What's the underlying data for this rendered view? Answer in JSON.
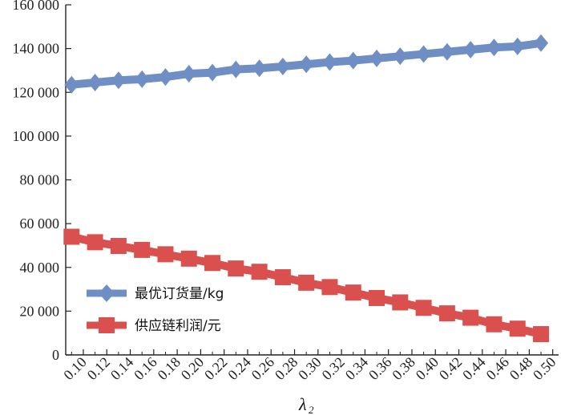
{
  "chart_data": {
    "type": "line",
    "x": [
      0.09,
      0.11,
      0.13,
      0.15,
      0.17,
      0.19,
      0.21,
      0.23,
      0.25,
      0.27,
      0.29,
      0.31,
      0.33,
      0.35,
      0.37,
      0.39,
      0.41,
      0.43,
      0.45,
      0.47,
      0.49
    ],
    "x_tick_labels": [
      "0.10",
      "0.12",
      "0.14",
      "0.16",
      "0.18",
      "0.20",
      "0.22",
      "0.24",
      "0.26",
      "0.28",
      "0.30",
      "0.32",
      "0.34",
      "0.36",
      "0.38",
      "0.40",
      "0.42",
      "0.44",
      "0.46",
      "0.48",
      "0.50"
    ],
    "y_tick_labels": [
      "0",
      "20 000",
      "40 000",
      "60 000",
      "80 000",
      "100 000",
      "120 000",
      "140 000",
      "160 000"
    ],
    "xlabel": "λ",
    "xlabel_sub": "2",
    "ylabel": "",
    "ylim": [
      0,
      160000
    ],
    "xlim": [
      0.085,
      0.505
    ],
    "grid": false,
    "legend_position": "center-left",
    "series": [
      {
        "name": "最优订货量/kg",
        "color": "#6f8fc4",
        "marker": "diamond",
        "values": [
          123500,
          124500,
          125500,
          126000,
          127000,
          128500,
          129000,
          130500,
          131000,
          131800,
          132800,
          133800,
          134500,
          135500,
          136500,
          137500,
          138500,
          139500,
          140500,
          141000,
          142500
        ]
      },
      {
        "name": "供应链利润/元",
        "color": "#d9504e",
        "marker": "square",
        "values": [
          54000,
          51500,
          49800,
          48000,
          46000,
          44000,
          42000,
          39500,
          38000,
          35500,
          33000,
          31000,
          28500,
          26000,
          24000,
          21500,
          19000,
          17000,
          14000,
          12000,
          9500
        ]
      }
    ]
  }
}
